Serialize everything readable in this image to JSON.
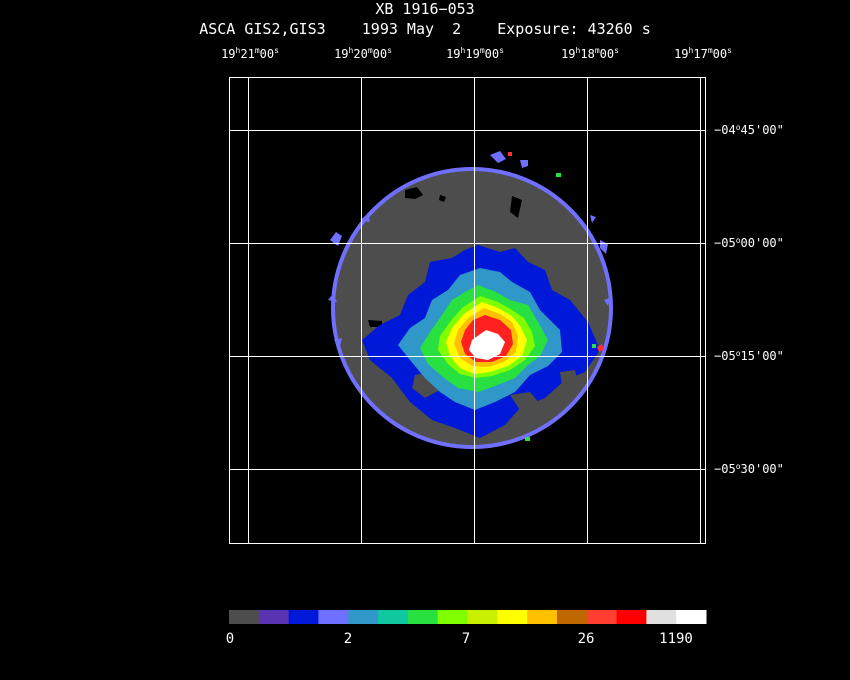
{
  "header": {
    "title": "XB 1916−053",
    "subtitle": "ASCA GIS2,GIS3    1993 May  2    Exposure: 43260 s"
  },
  "axes": {
    "ra_labels": [
      {
        "h": "19",
        "m": "21",
        "s": "00"
      },
      {
        "h": "19",
        "m": "20",
        "s": "00"
      },
      {
        "h": "19",
        "m": "19",
        "s": "00"
      },
      {
        "h": "19",
        "m": "18",
        "s": "00"
      },
      {
        "h": "19",
        "m": "17",
        "s": "00"
      }
    ],
    "dec_labels": [
      {
        "d": "−04",
        "m": "45",
        "s": "00"
      },
      {
        "d": "−05",
        "m": "00",
        "s": "00"
      },
      {
        "d": "−05",
        "m": "15",
        "s": "00"
      },
      {
        "d": "−05",
        "m": "30",
        "s": "00"
      }
    ]
  },
  "colorbar": {
    "colors": [
      "#4d4d4d",
      "#5a34b0",
      "#0018d8",
      "#6f70ff",
      "#2f98c8",
      "#10c8a0",
      "#28e040",
      "#80ff00",
      "#c8f000",
      "#ffff00",
      "#ffc000",
      "#c06800",
      "#ff4030",
      "#ff0000",
      "#e0e0e0",
      "#ffffff"
    ],
    "labels": [
      "0",
      "2",
      "7",
      "26",
      "1190"
    ]
  },
  "image_colors": {
    "background_disk": "#4d4d4d",
    "rim": "#6f70ff",
    "blue": "#0018d8",
    "teal": "#2f98c8",
    "green": "#28e040",
    "lime": "#80ff00",
    "yellow": "#ffff00",
    "orange": "#ffc000",
    "red": "#ff2020",
    "core": "#ffffff"
  }
}
